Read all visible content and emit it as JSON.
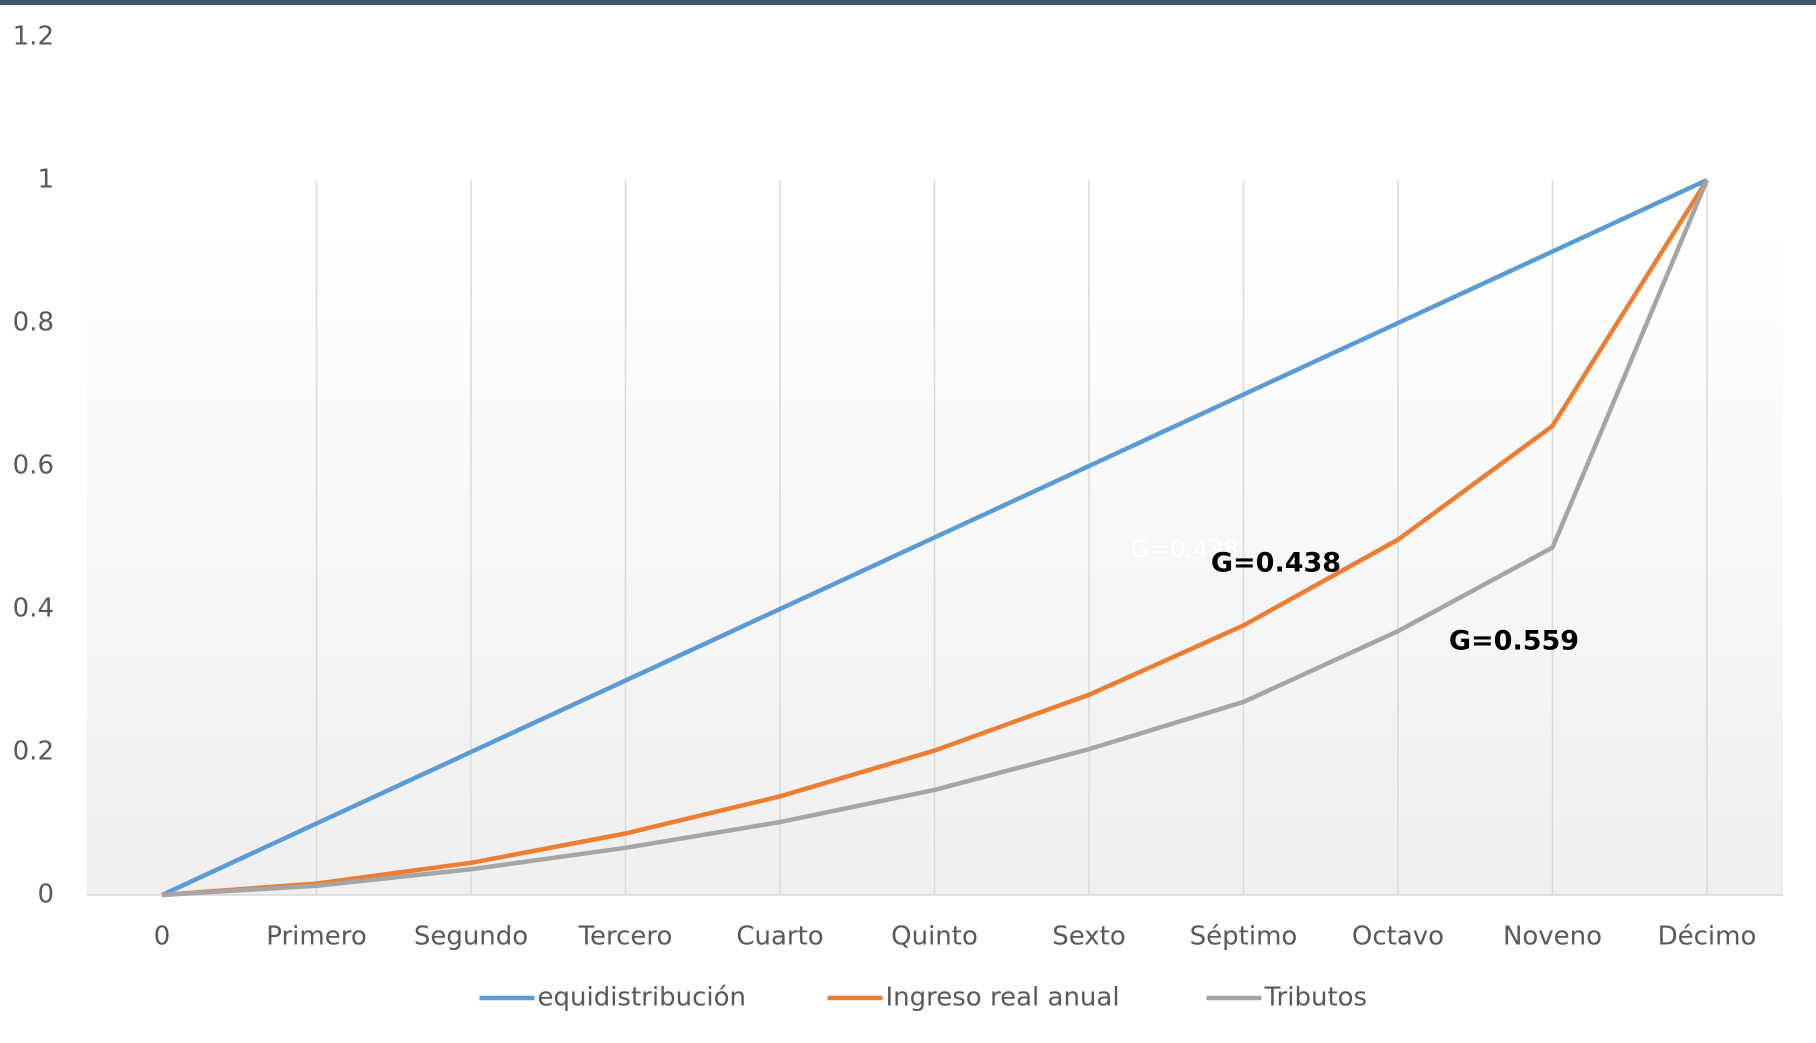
{
  "chart_data": {
    "type": "line",
    "categories": [
      "0",
      "Primero",
      "Segundo",
      "Tercero",
      "Cuarto",
      "Quinto",
      "Sexto",
      "Séptimo",
      "Octavo",
      "Noveno",
      "Décimo"
    ],
    "series": [
      {
        "name": "equidistribución",
        "color": "#5b9bd5",
        "values": [
          0,
          0.1,
          0.2,
          0.3,
          0.4,
          0.5,
          0.6,
          0.7,
          0.8,
          0.9,
          1
        ]
      },
      {
        "name": "Ingreso real anual",
        "color": "#ed7d31",
        "values": [
          0,
          0.016,
          0.045,
          0.086,
          0.138,
          0.202,
          0.28,
          0.377,
          0.497,
          0.656,
          1
        ]
      },
      {
        "name": "Tributos",
        "color": "#a5a5a5",
        "values": [
          0,
          0.013,
          0.036,
          0.066,
          0.102,
          0.147,
          0.204,
          0.27,
          0.369,
          0.486,
          1
        ]
      }
    ],
    "ylim": [
      0,
      1.2
    ],
    "yticks": [
      0,
      {
        "value": 0.2,
        "label": "0.2"
      },
      {
        "value": 0.4,
        "label": "0.4"
      },
      {
        "value": 0.6,
        "label": "0.6"
      },
      {
        "value": 0.8,
        "label": "0.8"
      },
      1,
      {
        "value": 1.2,
        "label": "1.2"
      }
    ],
    "grid": true,
    "legend": "bottom",
    "annotations": [
      "G=0.438",
      "G=0.438",
      "G=0.559"
    ]
  }
}
